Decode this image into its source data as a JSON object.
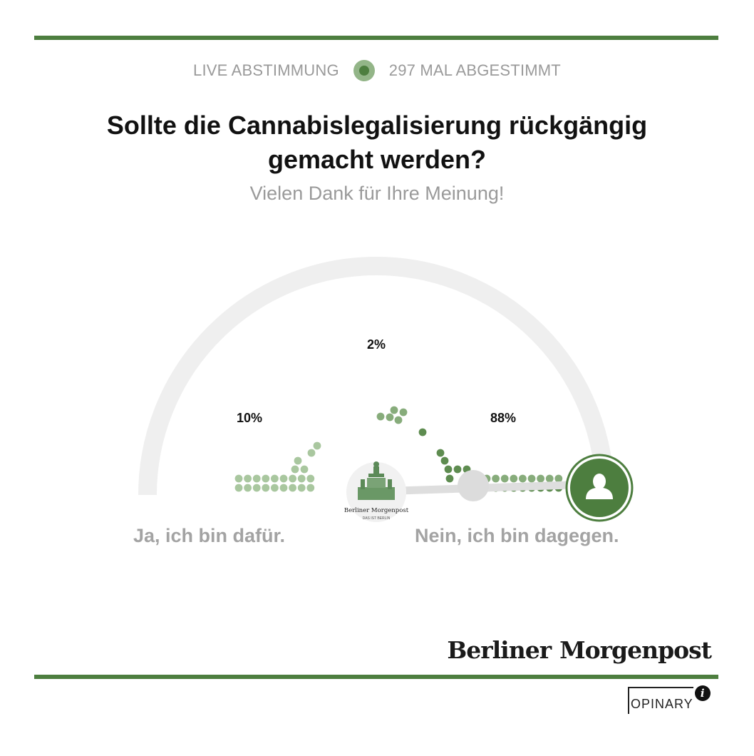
{
  "header": {
    "live_label": "LIVE ABSTIMMUNG",
    "vote_count_label": "297 MAL ABGESTIMMT"
  },
  "question": {
    "title": "Sollte die Cannabislegalisierung rückgängig gemacht werden?",
    "subtitle": "Vielen Dank für Ihre Meinung!"
  },
  "poll": {
    "options": [
      {
        "label": "Ja, ich bin dafür.",
        "percent_label": "10%",
        "percent": 10
      },
      {
        "label": "Nein, ich bin dagegen.",
        "percent_label": "88%",
        "percent": 88
      }
    ],
    "middle": {
      "percent_label": "2%",
      "percent": 2
    },
    "user_position": 0.97,
    "colors": {
      "accent": "#4d7e3f",
      "dot_light": "#a9c79f",
      "dot_mid": "#87ac7b",
      "dot_dark": "#5e8c50",
      "track": "#efefef"
    }
  },
  "publisher": {
    "name_left": "Berliner",
    "name_right": "Morgenpost",
    "badge_top": "Berliner Morgenpost",
    "badge_bottom": "DAS IST BERLIN"
  },
  "footer": {
    "opinary_label": "OPINARY",
    "info_icon": "info-icon"
  }
}
